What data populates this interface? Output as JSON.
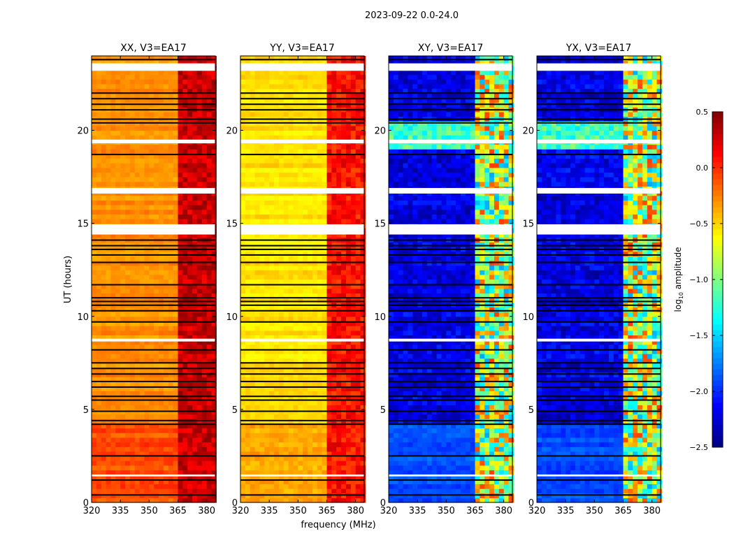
{
  "chart_data": {
    "type": "heatmap",
    "suptitle": "2023-09-22 0.0-24.0",
    "xlabel": "frequency (MHz)",
    "ylabel": "UT (hours)",
    "xlim": [
      320,
      384.5
    ],
    "ylim": [
      0,
      24
    ],
    "xticks": [
      320,
      335,
      350,
      365,
      380
    ],
    "yticks": [
      0,
      5,
      10,
      15,
      20
    ],
    "colorbar": {
      "label": "log10 amplitude",
      "label_base": "log",
      "label_sub": "10",
      "label_rest": " amplitude",
      "range": [
        -2.5,
        0.5
      ],
      "ticks": [
        "0.5",
        "0.0",
        "−0.5",
        "−1.0",
        "−1.5",
        "−2.0",
        "−2.5"
      ],
      "tick_values": [
        0.5,
        0.0,
        -0.5,
        -1.0,
        -1.5,
        -2.0,
        -2.5
      ],
      "colormap": "jet"
    },
    "flagged_band_mhz": [
      363,
      383
    ],
    "white_gaps_hours": [
      [
        23.2,
        23.6
      ],
      [
        19.3,
        19.5
      ],
      [
        16.6,
        16.9
      ],
      [
        14.4,
        14.95
      ],
      [
        8.65,
        8.8
      ],
      [
        1.4,
        1.5
      ]
    ],
    "black_lines_hours": [
      0.4,
      1.2,
      2.5,
      4.2,
      4.4,
      4.9,
      5.5,
      5.7,
      6.2,
      6.5,
      6.9,
      7.2,
      7.5,
      8.2,
      9.7,
      10.3,
      10.6,
      10.8,
      11.0,
      11.7,
      12.9,
      13.3,
      13.6,
      13.8,
      14.1,
      18.7,
      20.4,
      20.6,
      21.1,
      21.4,
      21.7,
      22.0,
      23.8
    ],
    "panels": [
      {
        "title": "XX, V3=EA17",
        "ylabel_shown": true,
        "base": -0.3,
        "low_base": -0.1,
        "band": 0.25,
        "active_base": -0.25
      },
      {
        "title": "YY, V3=EA17",
        "ylabel_shown": false,
        "base": -0.55,
        "low_base": -0.35,
        "band": 0.05,
        "active_base": -0.5
      },
      {
        "title": "XY, V3=EA17",
        "ylabel_shown": false,
        "base": -2.2,
        "low_base": -1.9,
        "band": -1.0,
        "active_base": -1.2
      },
      {
        "title": "YX, V3=EA17",
        "ylabel_shown": false,
        "base": -2.2,
        "low_base": -1.9,
        "band": -1.0,
        "active_base": -1.2
      }
    ]
  }
}
